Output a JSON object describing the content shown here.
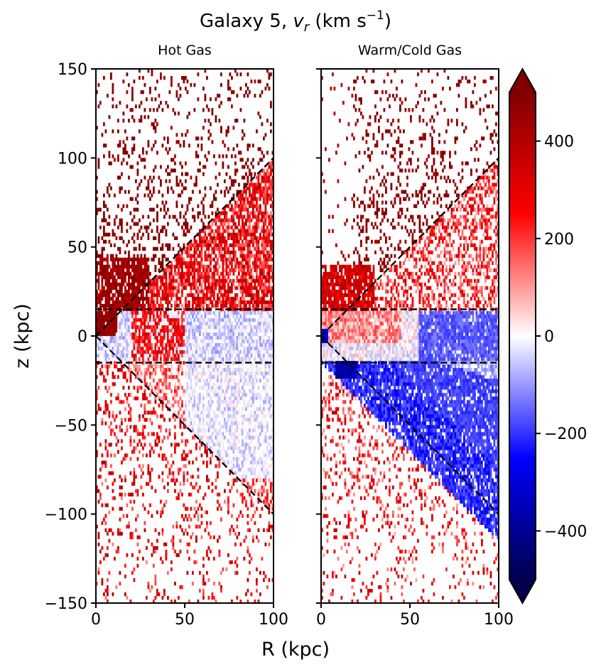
{
  "figure": {
    "title_prefix": "Galaxy 5, ",
    "title_var": "v",
    "title_sub": "r",
    "title_unit": " (km s",
    "title_exp": "−1",
    "title_close": ")",
    "xlabel": "R (kpc)",
    "ylabel": "z (kpc)"
  },
  "chart_data": [
    {
      "type": "heatmap",
      "title": "Hot Gas",
      "xlabel": "R (kpc)",
      "ylabel": "z (kpc)",
      "xlim": [
        0,
        100
      ],
      "ylim": [
        -150,
        150
      ],
      "xticks": [
        0,
        50,
        100
      ],
      "yticks": [
        -150,
        -100,
        -50,
        0,
        50,
        100,
        150
      ],
      "xtick_labels": [
        "0",
        "50",
        "100"
      ],
      "ytick_labels": [
        "−150",
        "−100",
        "−50",
        "0",
        "50",
        "100",
        "150"
      ],
      "grid_cells": [
        100,
        150
      ],
      "description_of_field": "mostly positive radial velocity (outflow); strong red/dark-red in upper cone, scattered red below, weak blue band near disk at z just below 0",
      "overlay_lines": [
        {
          "name": "cone-upper",
          "x": [
            0,
            100
          ],
          "y": [
            0,
            100
          ]
        },
        {
          "name": "cone-lower",
          "x": [
            0,
            100
          ],
          "y": [
            0,
            -100
          ]
        },
        {
          "name": "disk-upper",
          "x": [
            0,
            100
          ],
          "y": [
            15,
            15
          ]
        },
        {
          "name": "disk-lower",
          "x": [
            0,
            100
          ],
          "y": [
            -15,
            -15
          ]
        }
      ]
    },
    {
      "type": "heatmap",
      "title": "Warm/Cold Gas",
      "xlabel": "R (kpc)",
      "xlim": [
        0,
        100
      ],
      "ylim": [
        -150,
        150
      ],
      "xticks": [
        0,
        50,
        100
      ],
      "xtick_labels": [
        "0",
        "50",
        "100"
      ],
      "grid_cells": [
        100,
        150
      ],
      "description_of_field": "red outflow above z=15 inside upper cone, strong blue inflow (~ -200 km/s) below z=-15 along lower cone, near-white disk region",
      "overlay_lines": [
        {
          "name": "cone-upper",
          "x": [
            0,
            100
          ],
          "y": [
            0,
            100
          ]
        },
        {
          "name": "cone-lower",
          "x": [
            0,
            100
          ],
          "y": [
            0,
            -100
          ]
        },
        {
          "name": "disk-upper",
          "x": [
            0,
            100
          ],
          "y": [
            15,
            15
          ]
        },
        {
          "name": "disk-lower",
          "x": [
            0,
            100
          ],
          "y": [
            -15,
            -15
          ]
        }
      ]
    }
  ],
  "colorbar": {
    "cmap": "seismic",
    "vmin": -500,
    "vmax": 500,
    "extend": "both",
    "ticks": [
      -400,
      -200,
      0,
      200,
      400
    ],
    "tick_labels": [
      "−400",
      "−200",
      "0",
      "200",
      "400"
    ]
  }
}
